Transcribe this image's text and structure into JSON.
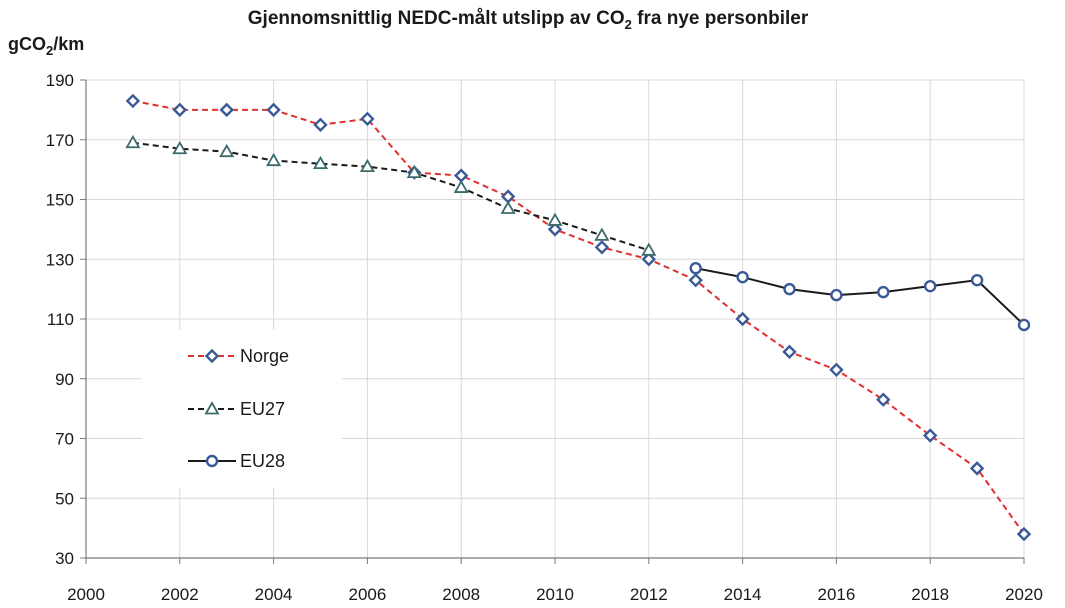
{
  "chart_data": {
    "type": "line",
    "title_main": "Gjennomsnittlig NEDC-målt utslipp av CO",
    "title_sub": "2",
    "title_end": " fra nye personbiler",
    "ylabel_main": "gCO",
    "ylabel_sub": "2",
    "ylabel_end": "/km",
    "xlabel": "",
    "xlim": [
      2000,
      2020
    ],
    "ylim": [
      30,
      190
    ],
    "x_ticks": [
      "2000",
      "2002",
      "2004",
      "2006",
      "2008",
      "2010",
      "2012",
      "2014",
      "2016",
      "2018",
      "2020"
    ],
    "y_ticks": [
      "30",
      "50",
      "70",
      "90",
      "110",
      "130",
      "150",
      "170",
      "190"
    ],
    "grid": "horizontal and vertical",
    "legend_position": "left-middle",
    "series": [
      {
        "name": "Norge",
        "color": "#e03030",
        "line_style": "dashed",
        "marker": "diamond",
        "x": [
          2001,
          2002,
          2003,
          2004,
          2005,
          2006,
          2007,
          2008,
          2009,
          2010,
          2011,
          2012,
          2013,
          2014,
          2015,
          2016,
          2017,
          2018,
          2019,
          2020
        ],
        "y": [
          183,
          180,
          180,
          180,
          175,
          177,
          159,
          158,
          151,
          140,
          134,
          130,
          123,
          110,
          99,
          93,
          83,
          71,
          60,
          38
        ]
      },
      {
        "name": "EU27",
        "color": "#1a1a1a",
        "line_style": "dashed",
        "marker": "triangle",
        "x": [
          2001,
          2002,
          2003,
          2004,
          2005,
          2006,
          2007,
          2008,
          2009,
          2010,
          2011,
          2012
        ],
        "y": [
          169,
          167,
          166,
          163,
          162,
          161,
          159,
          154,
          147,
          143,
          138,
          133
        ]
      },
      {
        "name": "EU28",
        "color": "#1a1a1a",
        "line_style": "solid",
        "marker": "circle",
        "x": [
          2013,
          2014,
          2015,
          2016,
          2017,
          2018,
          2019,
          2020
        ],
        "y": [
          127,
          124,
          120,
          118,
          119,
          121,
          123,
          108
        ]
      }
    ],
    "marker_stroke": "#3a5a96",
    "grid_color": "#d8d8d8"
  }
}
